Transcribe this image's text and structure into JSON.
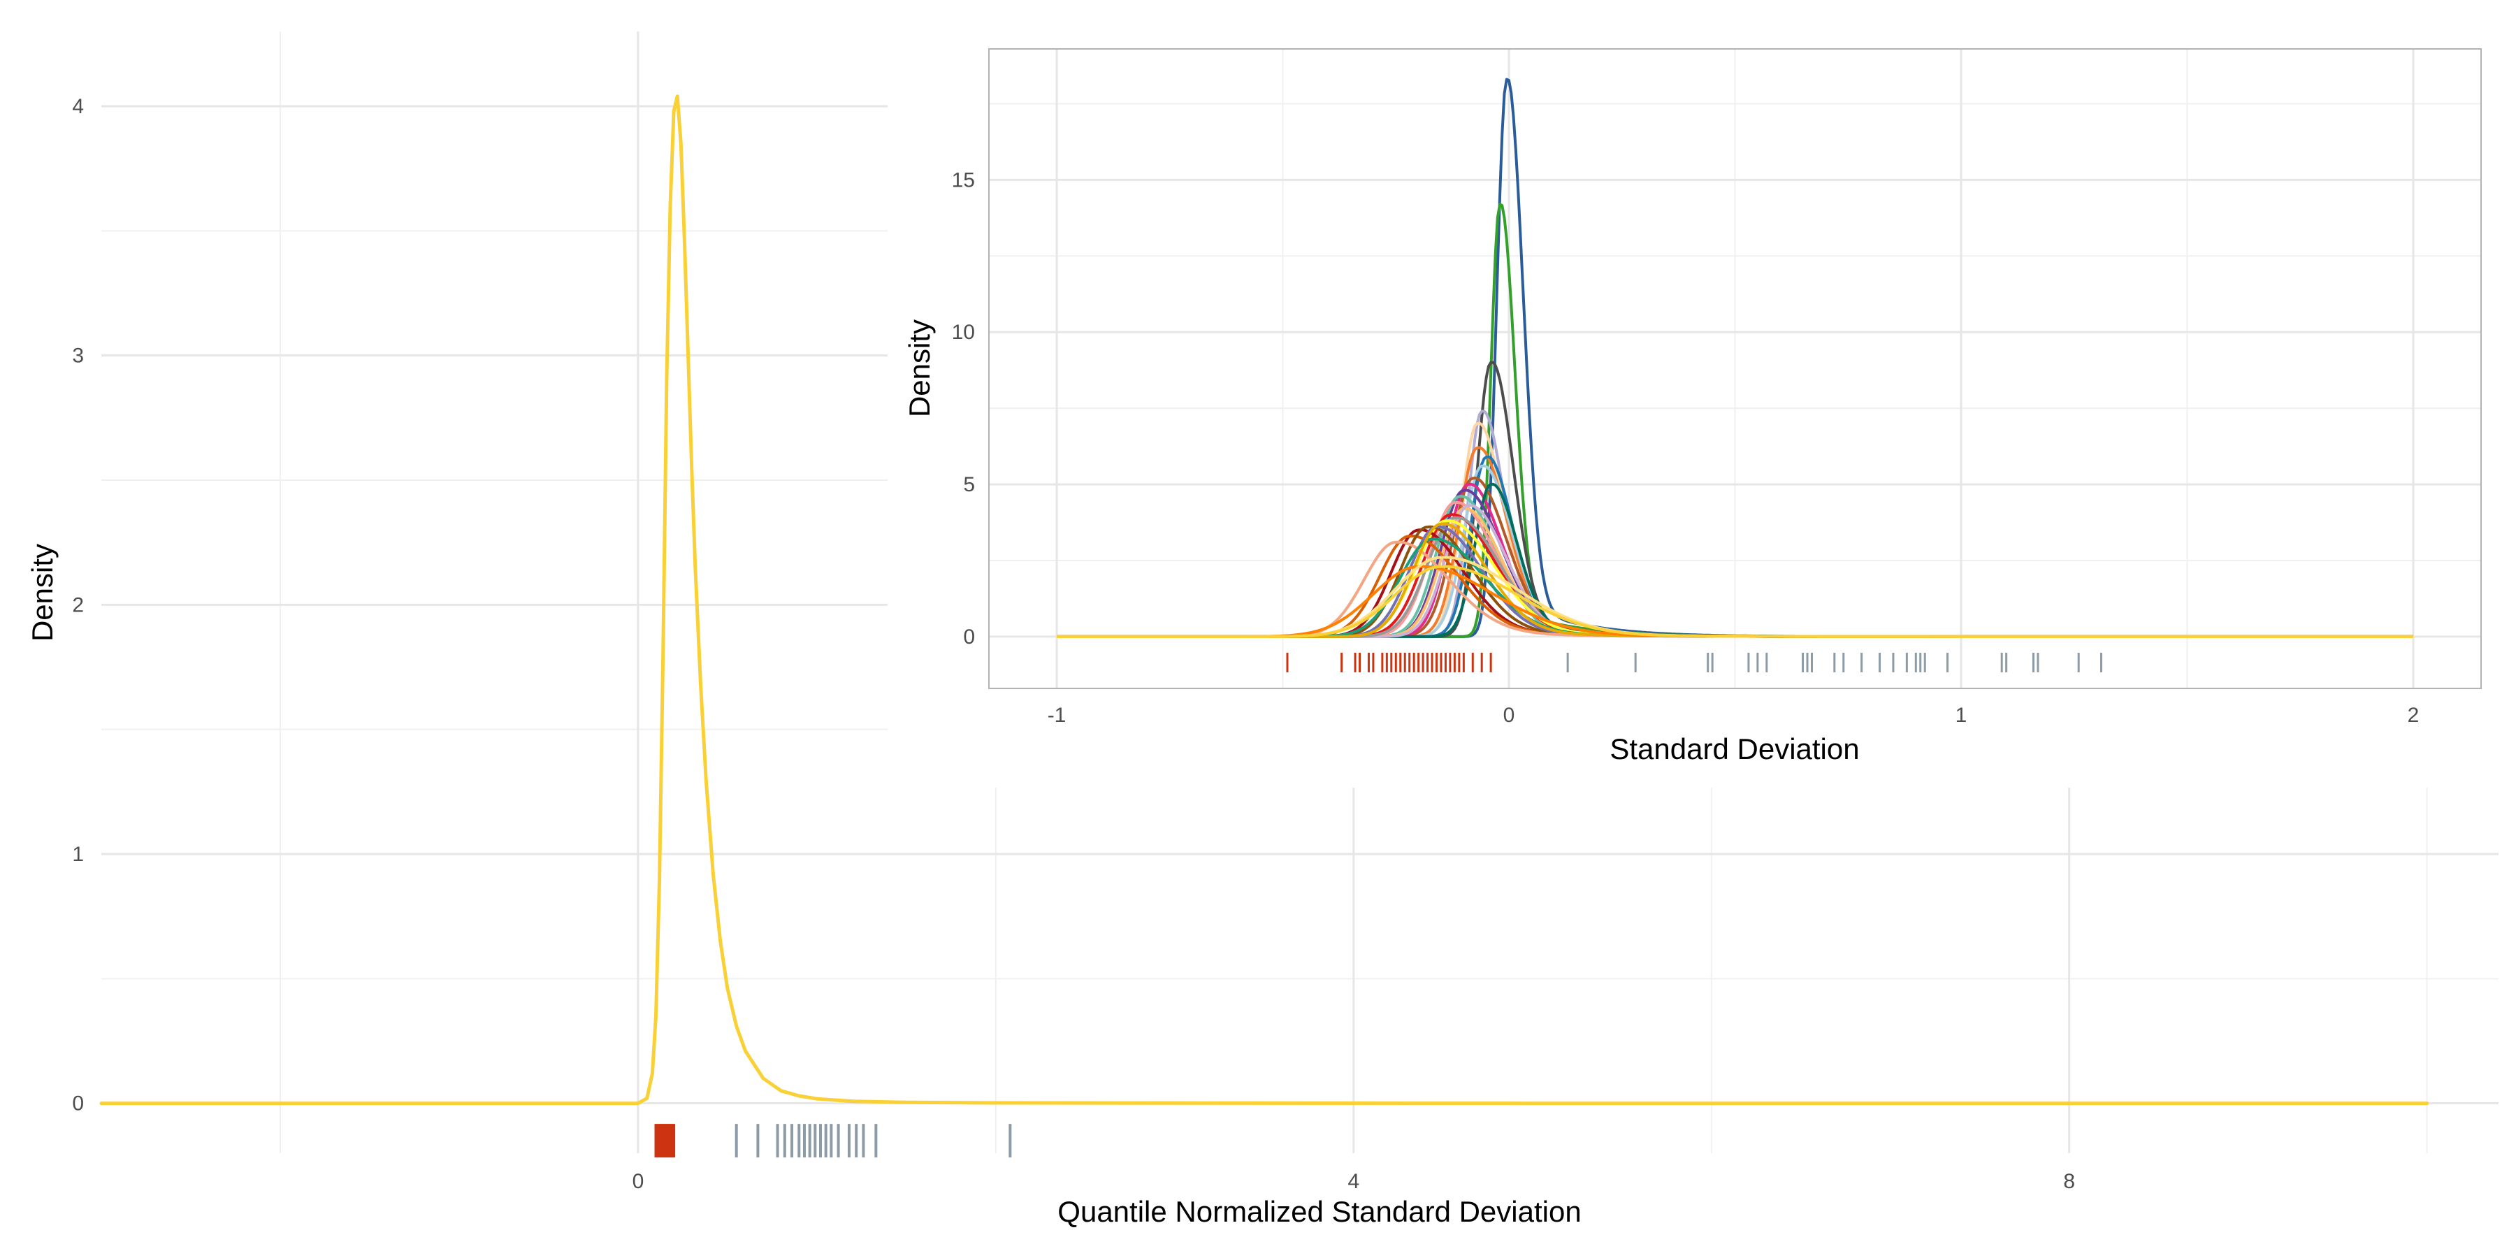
{
  "chart_data": [
    {
      "id": "main",
      "type": "line",
      "subtype": "density",
      "title": "",
      "xlabel": "Quantile Normalized Standard Deviation",
      "ylabel": "Density",
      "xlim": [
        -3,
        10.4
      ],
      "ylim": [
        -0.2,
        4.3
      ],
      "xticks": [
        0,
        4,
        8
      ],
      "xtick_labels": [
        "0",
        "4",
        "8"
      ],
      "yticks": [
        0,
        1,
        2,
        3,
        4
      ],
      "ytick_labels": [
        "0",
        "1",
        "2",
        "3",
        "4"
      ],
      "grid": true,
      "series": [
        {
          "color": "#F9D137",
          "x": [
            -3.0,
            0.0,
            0.05,
            0.08,
            0.1,
            0.12,
            0.14,
            0.16,
            0.18,
            0.2,
            0.22,
            0.24,
            0.26,
            0.28,
            0.3,
            0.32,
            0.35,
            0.38,
            0.42,
            0.46,
            0.5,
            0.55,
            0.6,
            0.7,
            0.8,
            0.9,
            1.0,
            1.2,
            1.5,
            2.0,
            3.0,
            5.0,
            10.0
          ],
          "y": [
            0.0,
            0.0,
            0.02,
            0.12,
            0.35,
            0.9,
            1.8,
            2.9,
            3.6,
            3.98,
            4.04,
            3.85,
            3.45,
            3.0,
            2.55,
            2.15,
            1.68,
            1.3,
            0.92,
            0.65,
            0.46,
            0.31,
            0.21,
            0.1,
            0.05,
            0.03,
            0.018,
            0.008,
            0.004,
            0.002,
            0.001,
            0.0,
            0.0
          ]
        }
      ],
      "rug": {
        "y": -0.15,
        "marks": [
          {
            "color": "#CC3311",
            "x": [
              0.1,
              0.11,
              0.12,
              0.13,
              0.14,
              0.15,
              0.16,
              0.17,
              0.18,
              0.19,
              0.2
            ]
          },
          {
            "color": "#8C9BA5",
            "x": [
              0.55,
              0.67,
              0.78,
              0.82,
              0.86,
              0.9,
              0.93,
              0.96,
              0.99,
              1.02,
              1.05,
              1.08,
              1.12,
              1.18,
              1.22,
              1.26,
              1.33,
              2.08
            ]
          }
        ]
      }
    },
    {
      "id": "inset",
      "type": "line",
      "subtype": "density",
      "title": "",
      "xlabel": "Standard Deviation",
      "ylabel": "Density",
      "xlim": [
        -1.15,
        2.15
      ],
      "ylim": [
        -1.7,
        19.3
      ],
      "xticks": [
        -1,
        0,
        1,
        2
      ],
      "xtick_labels": [
        "-1",
        "0",
        "1",
        "2"
      ],
      "yticks": [
        0,
        5,
        10,
        15
      ],
      "ytick_labels": [
        "0",
        "5",
        "10",
        "15"
      ],
      "grid": true,
      "xrange": [
        -1,
        2
      ],
      "series": [
        {
          "color": "#2B5C9A",
          "mu": -0.005,
          "s": 0.022,
          "peak": 18.3,
          "tail": 0.13
        },
        {
          "color": "#33A02C",
          "mu": -0.02,
          "s": 0.02,
          "peak": 14.2,
          "tail": 0.13
        },
        {
          "color": "#4D4D4D",
          "mu": -0.04,
          "s": 0.03,
          "peak": 9.0,
          "tail": 0.15
        },
        {
          "color": "#B2ABD2",
          "mu": -0.06,
          "s": 0.03,
          "peak": 7.4,
          "tail": 0.15
        },
        {
          "color": "#FFD5A5",
          "mu": -0.07,
          "s": 0.035,
          "peak": 7.0,
          "tail": 0.15
        },
        {
          "color": "#F57C2B",
          "mu": -0.07,
          "s": 0.04,
          "peak": 6.2,
          "tail": 0.16
        },
        {
          "color": "#1F78B4",
          "mu": -0.05,
          "s": 0.035,
          "peak": 5.9,
          "tail": 0.15
        },
        {
          "color": "#A6CEE3",
          "mu": -0.06,
          "s": 0.04,
          "peak": 5.6,
          "tail": 0.16
        },
        {
          "color": "#B15928",
          "mu": -0.08,
          "s": 0.045,
          "peak": 5.2,
          "tail": 0.17
        },
        {
          "color": "#E7298A",
          "mu": -0.09,
          "s": 0.045,
          "peak": 5.0,
          "tail": 0.17
        },
        {
          "color": "#006D5B",
          "mu": -0.04,
          "s": 0.035,
          "peak": 5.0,
          "tail": 0.16
        },
        {
          "color": "#6A3D9A",
          "mu": -0.1,
          "s": 0.05,
          "peak": 4.8,
          "tail": 0.18
        },
        {
          "color": "#66C2A5",
          "mu": -0.11,
          "s": 0.05,
          "peak": 4.6,
          "tail": 0.18
        },
        {
          "color": "#FB9A99",
          "mu": -0.12,
          "s": 0.055,
          "peak": 4.4,
          "tail": 0.19
        },
        {
          "color": "#FDBF6F",
          "mu": -0.1,
          "s": 0.05,
          "peak": 4.2,
          "tail": 0.18
        },
        {
          "color": "#CAB2D6",
          "mu": -0.09,
          "s": 0.05,
          "peak": 4.3,
          "tail": 0.18
        },
        {
          "color": "#E31A1C",
          "mu": -0.13,
          "s": 0.06,
          "peak": 4.0,
          "tail": 0.2
        },
        {
          "color": "#999999",
          "mu": -0.12,
          "s": 0.06,
          "peak": 3.9,
          "tail": 0.19
        },
        {
          "color": "#FFFF33",
          "mu": -0.14,
          "s": 0.065,
          "peak": 3.8,
          "tail": 0.2
        },
        {
          "color": "#A50F15",
          "mu": -0.2,
          "s": 0.06,
          "peak": 3.5,
          "tail": 0.22
        },
        {
          "color": "#D95F02",
          "mu": -0.22,
          "s": 0.065,
          "peak": 3.3,
          "tail": 0.22
        },
        {
          "color": "#8C510A",
          "mu": -0.18,
          "s": 0.06,
          "peak": 3.6,
          "tail": 0.22
        },
        {
          "color": "#7570B3",
          "mu": -0.16,
          "s": 0.06,
          "peak": 3.6,
          "tail": 0.21
        },
        {
          "color": "#F4A582",
          "mu": -0.25,
          "s": 0.07,
          "peak": 3.1,
          "tail": 0.24
        },
        {
          "color": "#1B9E77",
          "mu": -0.17,
          "s": 0.07,
          "peak": 3.2,
          "tail": 0.22
        },
        {
          "color": "#E6AB02",
          "mu": -0.15,
          "s": 0.06,
          "peak": 3.7,
          "tail": 0.21
        },
        {
          "color": "#FF7F00",
          "mu": -0.2,
          "s": 0.1,
          "peak": 2.3,
          "tail": 0.26
        },
        {
          "color": "#FFE082",
          "mu": -0.15,
          "s": 0.1,
          "peak": 2.6,
          "tail": 0.24
        },
        {
          "color": "#F9D137",
          "mu": -0.15,
          "s": 0.1,
          "peak": 2.3,
          "tail": 0.25
        }
      ],
      "rug": {
        "y": -0.85,
        "marks": [
          {
            "color": "#CC3311",
            "x": [
              -0.49,
              -0.37,
              -0.34,
              -0.33,
              -0.31,
              -0.3,
              -0.28,
              -0.27,
              -0.26,
              -0.25,
              -0.24,
              -0.23,
              -0.22,
              -0.21,
              -0.2,
              -0.19,
              -0.18,
              -0.17,
              -0.16,
              -0.15,
              -0.14,
              -0.13,
              -0.12,
              -0.11,
              -0.1,
              -0.08,
              -0.06,
              -0.04
            ]
          },
          {
            "color": "#8C9BA5",
            "x": [
              0.13,
              0.28,
              0.44,
              0.45,
              0.53,
              0.55,
              0.57,
              0.65,
              0.66,
              0.67,
              0.72,
              0.74,
              0.78,
              0.82,
              0.85,
              0.88,
              0.9,
              0.91,
              0.92,
              0.97,
              1.09,
              1.1,
              1.16,
              1.17,
              1.26,
              1.31
            ]
          }
        ]
      }
    }
  ]
}
